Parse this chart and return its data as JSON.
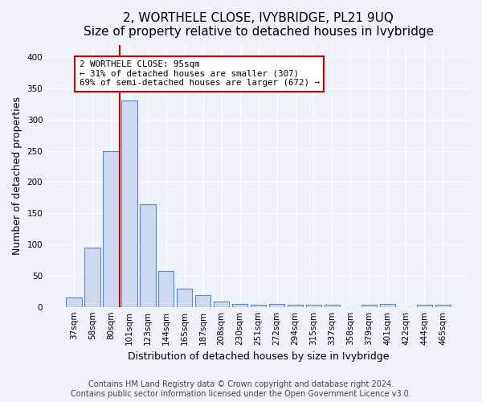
{
  "title": "2, WORTHELE CLOSE, IVYBRIDGE, PL21 9UQ",
  "subtitle": "Size of property relative to detached houses in Ivybridge",
  "xlabel": "Distribution of detached houses by size in Ivybridge",
  "ylabel": "Number of detached properties",
  "categories": [
    "37sqm",
    "58sqm",
    "80sqm",
    "101sqm",
    "123sqm",
    "144sqm",
    "165sqm",
    "187sqm",
    "208sqm",
    "230sqm",
    "251sqm",
    "272sqm",
    "294sqm",
    "315sqm",
    "337sqm",
    "358sqm",
    "379sqm",
    "401sqm",
    "422sqm",
    "444sqm",
    "465sqm"
  ],
  "values": [
    15,
    95,
    250,
    330,
    165,
    58,
    29,
    19,
    8,
    5,
    3,
    5,
    3,
    3,
    3,
    0,
    4,
    5,
    0,
    3,
    3
  ],
  "bar_color": "#ccd9f0",
  "bar_edge_color": "#5a8ac6",
  "annotation_line1": "2 WORTHELE CLOSE: 95sqm",
  "annotation_line2": "← 31% of detached houses are smaller (307)",
  "annotation_line3": "69% of semi-detached houses are larger (672) →",
  "vline_x": 2.5,
  "vline_color": "#cc0000",
  "annotation_box_color": "#ffffff",
  "annotation_box_edge_color": "#cc0000",
  "ylim": [
    0,
    420
  ],
  "yticks": [
    0,
    50,
    100,
    150,
    200,
    250,
    300,
    350,
    400
  ],
  "footnote": "Contains HM Land Registry data © Crown copyright and database right 2024.\nContains public sector information licensed under the Open Government Licence v3.0.",
  "bg_color": "#eef2fb",
  "title_fontsize": 11,
  "subtitle_fontsize": 10,
  "xlabel_fontsize": 9,
  "ylabel_fontsize": 9,
  "tick_fontsize": 7.5,
  "footnote_fontsize": 7
}
